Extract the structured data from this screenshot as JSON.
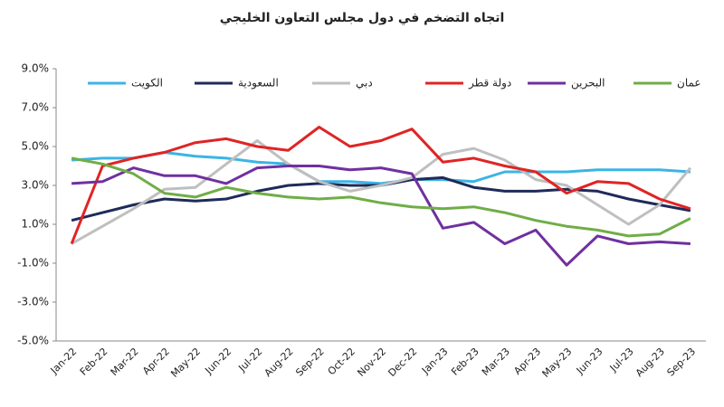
{
  "chart_data": {
    "type": "line",
    "title": "اتجاه التضخم في دول مجلس التعاون الخليجي",
    "categories": [
      "Jan-22",
      "Feb-22",
      "Mar-22",
      "Apr-22",
      "May-22",
      "Jun-22",
      "Jul-22",
      "Aug-22",
      "Sep-22",
      "Oct-22",
      "Nov-22",
      "Dec-22",
      "Jan-23",
      "Feb-23",
      "Mar-23",
      "Apr-23",
      "May-23",
      "Jun-23",
      "Jul-23",
      "Aug-23",
      "Sep-23"
    ],
    "series": [
      {
        "name": "الكويت",
        "color": "#3cb4e5",
        "values": [
          4.3,
          4.4,
          4.4,
          4.7,
          4.5,
          4.4,
          4.2,
          4.1,
          3.2,
          3.2,
          3.1,
          3.3,
          3.3,
          3.2,
          3.7,
          3.7,
          3.7,
          3.8,
          3.8,
          3.8,
          3.7
        ]
      },
      {
        "name": "السعودية",
        "color": "#1f2a5a",
        "values": [
          1.2,
          1.6,
          2.0,
          2.3,
          2.2,
          2.3,
          2.7,
          3.0,
          3.1,
          3.0,
          3.0,
          3.3,
          3.4,
          2.9,
          2.7,
          2.7,
          2.8,
          2.7,
          2.3,
          2.0,
          1.7
        ]
      },
      {
        "name": "دبي",
        "color": "#bfbfbf",
        "values": [
          0.0,
          0.9,
          1.8,
          2.8,
          2.9,
          4.1,
          5.3,
          4.1,
          3.2,
          2.7,
          3.0,
          3.4,
          4.6,
          4.9,
          4.3,
          3.3,
          3.0,
          2.0,
          1.0,
          2.0,
          3.9
        ]
      },
      {
        "name": "دولة قطر",
        "color": "#e02424",
        "values": [
          0.0,
          4.0,
          4.4,
          4.7,
          5.2,
          5.4,
          5.0,
          4.8,
          6.0,
          5.0,
          5.3,
          5.9,
          4.2,
          4.4,
          4.0,
          3.7,
          2.6,
          3.2,
          3.1,
          2.3,
          1.8
        ]
      },
      {
        "name": "البحرين",
        "color": "#7030a0",
        "values": [
          3.1,
          3.2,
          3.9,
          3.5,
          3.5,
          3.1,
          3.9,
          4.0,
          4.0,
          3.8,
          3.9,
          3.6,
          0.8,
          1.1,
          0.0,
          0.7,
          -1.1,
          0.4,
          0.0,
          0.1,
          0.0
        ]
      },
      {
        "name": "عمان",
        "color": "#70ad47",
        "values": [
          4.4,
          4.1,
          3.6,
          2.6,
          2.4,
          2.9,
          2.6,
          2.4,
          2.3,
          2.4,
          2.1,
          1.9,
          1.8,
          1.9,
          1.6,
          1.2,
          0.9,
          0.7,
          0.4,
          0.5,
          1.3
        ]
      }
    ],
    "ylim": [
      -5,
      9
    ],
    "yticks": [
      {
        "value": -5,
        "label": "-5.0%"
      },
      {
        "value": -3,
        "label": "-3.0%"
      },
      {
        "value": -1,
        "label": "-1.0%"
      },
      {
        "value": 1,
        "label": "1.0%"
      },
      {
        "value": 3,
        "label": "3.0%"
      },
      {
        "value": 5,
        "label": "5.0%"
      },
      {
        "value": 7,
        "label": "7.0%"
      },
      {
        "value": 9,
        "label": "9.0%"
      }
    ],
    "grid": false,
    "legend": "top"
  }
}
